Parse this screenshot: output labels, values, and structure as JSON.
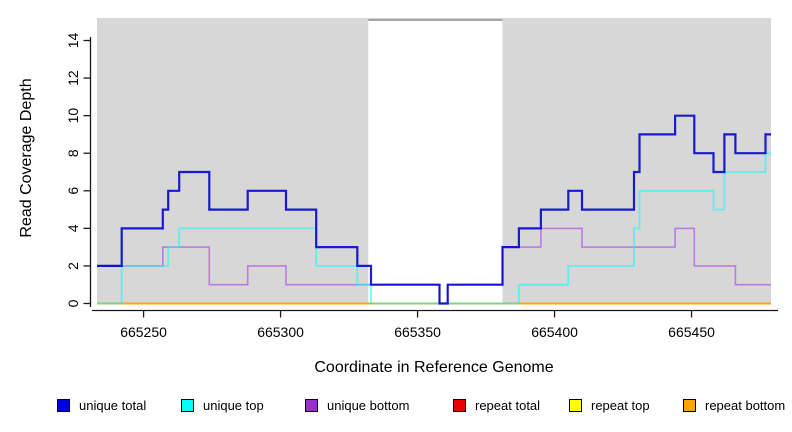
{
  "figure": {
    "background_color": "#ffffff",
    "plot_background_color": "#d7d7d7",
    "highlight_band": {
      "x_start": 665332,
      "x_end": 665381,
      "color": "#ffffff",
      "top_border_color": "#8d8d8d"
    },
    "x_axis": {
      "label": "Coordinate in Reference Genome",
      "ticks": [
        665250,
        665300,
        665350,
        665400,
        665450
      ]
    },
    "y_axis": {
      "label": "Read Coverage Depth",
      "ticks": [
        0,
        2,
        4,
        6,
        8,
        10,
        12,
        14
      ]
    },
    "legend": [
      {
        "label": "unique total",
        "color": "#0000dd"
      },
      {
        "label": "unique top",
        "color": "#00ffff"
      },
      {
        "label": "unique bottom",
        "color": "#9932cc"
      },
      {
        "label": "repeat total",
        "color": "#e60000"
      },
      {
        "label": "repeat top",
        "color": "#ffff00"
      },
      {
        "label": "repeat bottom",
        "color": "#ffa500"
      }
    ]
  },
  "chart_data": {
    "type": "line",
    "subtype": "step",
    "title": "",
    "xlabel": "Coordinate in Reference Genome",
    "ylabel": "Read Coverage Depth",
    "xlim": [
      665233,
      665479
    ],
    "ylim": [
      0,
      15.2
    ],
    "x_ticks": [
      665250,
      665300,
      665350,
      665400,
      665450
    ],
    "y_ticks": [
      0,
      2,
      4,
      6,
      8,
      10,
      12,
      14
    ],
    "grid": false,
    "legend_position": "bottom",
    "highlight_region": {
      "start": 665332,
      "end": 665381,
      "note": "white band over gray plot background"
    },
    "x_end": 665479,
    "draw_order": [
      "repeat total",
      "repeat top",
      "unique bottom",
      "repeat bottom",
      "unique top",
      "unique total"
    ],
    "series": [
      {
        "name": "unique total",
        "color": "#0000cd",
        "opacity": 0.88,
        "width": 2.2,
        "steps": [
          [
            665233,
            2
          ],
          [
            665242,
            4
          ],
          [
            665257,
            5
          ],
          [
            665259,
            6
          ],
          [
            665263,
            7
          ],
          [
            665274,
            5
          ],
          [
            665288,
            6
          ],
          [
            665302,
            5
          ],
          [
            665313,
            3
          ],
          [
            665328,
            2
          ],
          [
            665333,
            1
          ],
          [
            665358,
            0
          ],
          [
            665361,
            1
          ],
          [
            665381,
            3
          ],
          [
            665387,
            4
          ],
          [
            665395,
            5
          ],
          [
            665405,
            6
          ],
          [
            665410,
            5
          ],
          [
            665429,
            7
          ],
          [
            665431,
            9
          ],
          [
            665444,
            10
          ],
          [
            665451,
            8
          ],
          [
            665458,
            7
          ],
          [
            665462,
            9
          ],
          [
            665466,
            8
          ],
          [
            665477,
            9
          ]
        ]
      },
      {
        "name": "unique top",
        "color": "#00ffff",
        "opacity": 0.55,
        "width": 1.8,
        "steps": [
          [
            665233,
            0
          ],
          [
            665242,
            2
          ],
          [
            665259,
            3
          ],
          [
            665263,
            4
          ],
          [
            665313,
            2
          ],
          [
            665328,
            1
          ],
          [
            665333,
            0
          ],
          [
            665387,
            1
          ],
          [
            665405,
            2
          ],
          [
            665429,
            4
          ],
          [
            665431,
            6
          ],
          [
            665458,
            5
          ],
          [
            665462,
            7
          ],
          [
            665477,
            8
          ]
        ]
      },
      {
        "name": "unique bottom",
        "color": "#a020f0",
        "opacity": 0.5,
        "width": 1.6,
        "steps": [
          [
            665233,
            2
          ],
          [
            665257,
            3
          ],
          [
            665274,
            1
          ],
          [
            665288,
            2
          ],
          [
            665302,
            1
          ],
          [
            665358,
            0
          ],
          [
            665361,
            1
          ],
          [
            665381,
            3
          ],
          [
            665395,
            4
          ],
          [
            665410,
            3
          ],
          [
            665444,
            4
          ],
          [
            665451,
            2
          ],
          [
            665466,
            1
          ]
        ]
      },
      {
        "name": "repeat total",
        "color": "#e60000",
        "opacity": 1,
        "width": 1.6,
        "steps": [
          [
            665233,
            0
          ]
        ]
      },
      {
        "name": "repeat top",
        "color": "#ffff00",
        "opacity": 1,
        "width": 1.6,
        "steps": [
          [
            665233,
            0
          ]
        ]
      },
      {
        "name": "repeat bottom",
        "color": "#ffa500",
        "opacity": 1,
        "width": 1.8,
        "steps": [
          [
            665233,
            0
          ]
        ]
      }
    ]
  }
}
